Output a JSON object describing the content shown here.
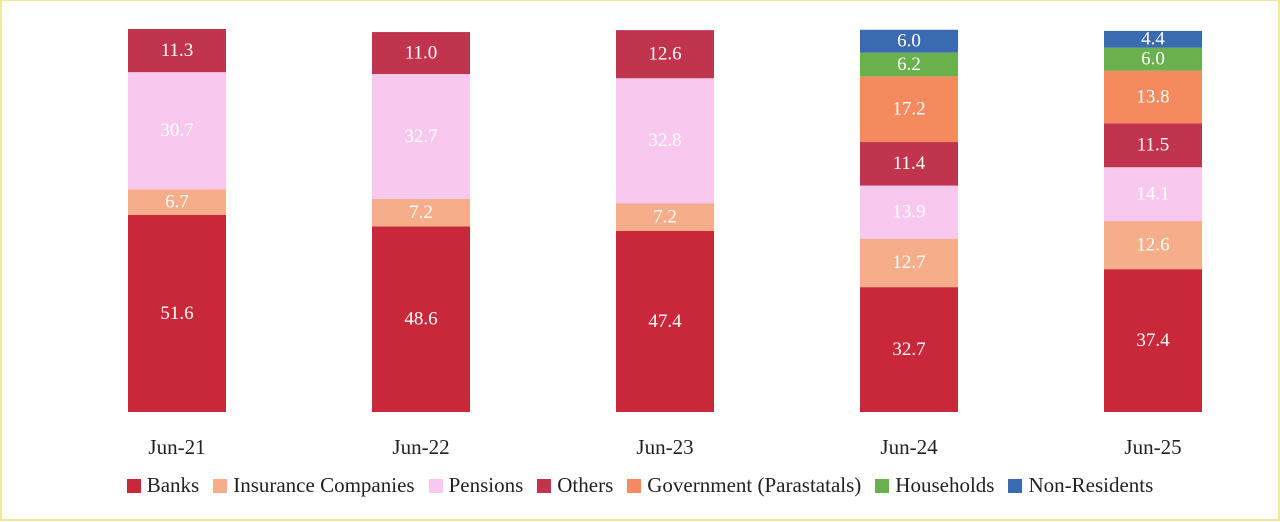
{
  "chart_data": {
    "type": "stacked_bar",
    "categories": [
      "Jun-21",
      "Jun-22",
      "Jun-23",
      "Jun-24",
      "Jun-25"
    ],
    "series": [
      {
        "name": "Banks",
        "color": "#c8283a",
        "values": [
          51.6,
          48.6,
          47.4,
          32.7,
          37.4
        ],
        "value_labels": [
          "51.6",
          "48.6",
          "47.4",
          "32.7",
          "37.4"
        ]
      },
      {
        "name": "Insurance Companies",
        "color": "#f5ad8a",
        "values": [
          6.7,
          7.2,
          7.2,
          12.7,
          12.6
        ],
        "value_labels": [
          "6.7",
          "7.2",
          "7.2",
          "12.7",
          "12.6"
        ]
      },
      {
        "name": "Pensions",
        "color": "#f8c8ee",
        "values": [
          30.7,
          32.7,
          32.8,
          13.9,
          14.1
        ],
        "value_labels": [
          "30.7",
          "32.7",
          "32.8",
          "13.9",
          "14.1"
        ]
      },
      {
        "name": "Others",
        "color": "#c0344e",
        "values": [
          11.3,
          11.0,
          12.6,
          11.4,
          11.5
        ],
        "value_labels": [
          "11.3",
          "11.0",
          "12.6",
          "11.4",
          "11.5"
        ]
      },
      {
        "name": "Government (Parastatals)",
        "color": "#f58a5e",
        "values": [
          null,
          null,
          null,
          17.2,
          13.8
        ],
        "value_labels": [
          null,
          null,
          null,
          "17.2",
          "13.8"
        ]
      },
      {
        "name": "Households",
        "color": "#6ab04c",
        "values": [
          null,
          null,
          null,
          6.2,
          6.0
        ],
        "value_labels": [
          null,
          null,
          null,
          "6.2",
          "6.0"
        ]
      },
      {
        "name": "Non-Residents",
        "color": "#3a6bb0",
        "values": [
          null,
          null,
          null,
          6.0,
          4.4
        ],
        "value_labels": [
          null,
          null,
          null,
          "6.0",
          "4.4"
        ]
      }
    ]
  }
}
